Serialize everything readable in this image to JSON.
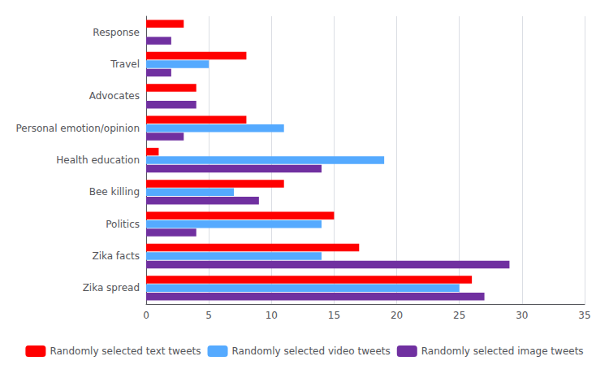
{
  "chart_data": {
    "type": "bar",
    "orientation": "horizontal",
    "categories": [
      "Zika spread",
      "Zika facts",
      "Politics",
      "Bee killing",
      "Health education",
      "Personal emotion/opinion",
      "Advocates",
      "Travel",
      "Response"
    ],
    "series": [
      {
        "name": "Randomly selected text tweets",
        "color": "#FF0000",
        "values": [
          26,
          17,
          15,
          11,
          1,
          8,
          4,
          8,
          3
        ]
      },
      {
        "name": "Randomly selected video tweets",
        "color": "#55AAFF",
        "values": [
          25,
          14,
          14,
          7,
          19,
          11,
          0,
          5,
          0
        ]
      },
      {
        "name": "Randomly selected image tweets",
        "color": "#7030A0",
        "values": [
          27,
          29,
          4,
          9,
          14,
          3,
          4,
          2,
          2
        ]
      }
    ],
    "xlim": [
      0,
      35
    ],
    "xticks": [
      0,
      5,
      10,
      15,
      20,
      25,
      30,
      35
    ],
    "grid": true,
    "legend": "bottom"
  }
}
